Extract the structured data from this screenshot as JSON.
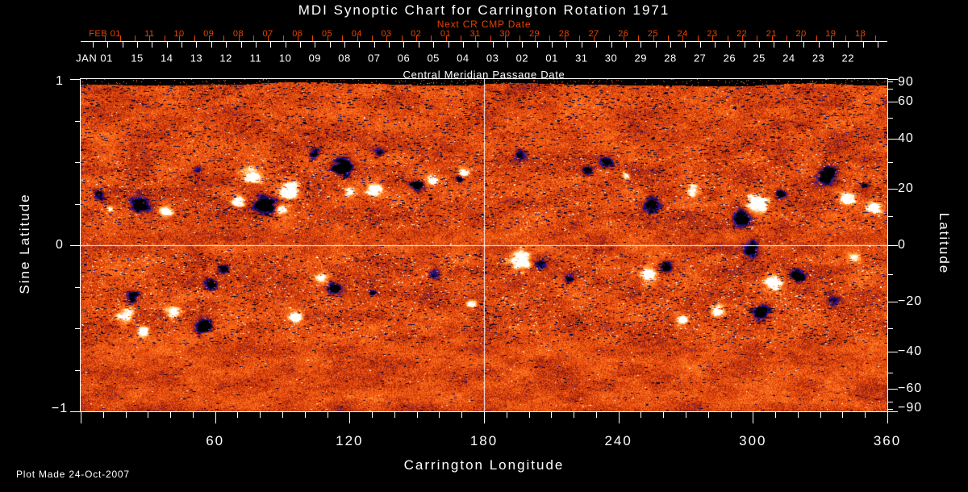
{
  "title": "MDI Synoptic Chart for Carrington Rotation 1971",
  "footer": "Plot Made 24-Oct-2007",
  "colors": {
    "background": "#000000",
    "foreground": "#ffffff",
    "red_axis": "#e84300"
  },
  "top_axis": {
    "red_title": "Next CR CMP Date",
    "red_month": "FEB 01",
    "red_days": [
      "11",
      "10",
      "09",
      "08",
      "07",
      "06",
      "05",
      "04",
      "03",
      "02",
      "01",
      "31",
      "30",
      "29",
      "28",
      "27",
      "26",
      "25",
      "24",
      "23",
      "22",
      "21",
      "20",
      "19",
      "18"
    ],
    "white_month": "JAN 01",
    "white_days": [
      "15",
      "14",
      "13",
      "12",
      "11",
      "10",
      "09",
      "08",
      "07",
      "06",
      "05",
      "04",
      "03",
      "02",
      "01",
      "31",
      "30",
      "29",
      "28",
      "27",
      "26",
      "25",
      "24",
      "23",
      "22"
    ],
    "white_title": "Central Meridian Passage Date"
  },
  "left_axis": {
    "title": "Sine Latitude",
    "labels": [
      {
        "text": "1",
        "s": 1
      },
      {
        "text": "0",
        "s": 0
      },
      {
        "text": "−1",
        "s": -1
      }
    ],
    "minor_step_sine": 0.25
  },
  "right_axis": {
    "title": "Latitude",
    "labels": [
      {
        "text": "90",
        "lat": 90
      },
      {
        "text": "60",
        "lat": 60
      },
      {
        "text": "40",
        "lat": 40
      },
      {
        "text": "20",
        "lat": 20
      },
      {
        "text": "0",
        "lat": 0
      },
      {
        "text": "−20",
        "lat": -20
      },
      {
        "text": "−40",
        "lat": -40
      },
      {
        "text": "−60",
        "lat": -60
      },
      {
        "text": "−90",
        "lat": -90
      }
    ],
    "minor_step_deg": 10
  },
  "bottom_axis": {
    "title": "Carrington Longitude",
    "labels": [
      {
        "text": "60",
        "lon": 60
      },
      {
        "text": "120",
        "lon": 120
      },
      {
        "text": "180",
        "lon": 180
      },
      {
        "text": "240",
        "lon": 240
      },
      {
        "text": "300",
        "lon": 300
      },
      {
        "text": "360",
        "lon": 360
      }
    ],
    "minor_step_deg": 10,
    "range_deg": [
      0,
      360
    ]
  },
  "chart_data": {
    "type": "heatmap",
    "title": "MDI Synoptic Chart for Carrington Rotation 1971",
    "xlabel": "Carrington Longitude",
    "ylabel_left": "Sine Latitude",
    "ylabel_right": "Latitude",
    "x_range_deg": [
      0,
      360
    ],
    "sine_latitude_range": [
      -1,
      1
    ],
    "crosshair": {
      "longitude_deg": 180,
      "sine_latitude": 0
    },
    "description": "Full-disk solar magnetogram synoptic map: mottled orange/red quiet-sun field with dark (negative polarity, black/blue) and bright (positive polarity, white/cream) active regions concentrated in two latitude bands; black no-data strip along the top edge.",
    "palette": [
      [
        -1.0,
        "#000000"
      ],
      [
        -0.72,
        "#05051e"
      ],
      [
        -0.5,
        "#1c16a8"
      ],
      [
        -0.36,
        "#4a1480"
      ],
      [
        -0.26,
        "#7c1a20"
      ],
      [
        -0.16,
        "#a22408"
      ],
      [
        -0.06,
        "#c63409"
      ],
      [
        0.04,
        "#e0460e"
      ],
      [
        0.16,
        "#f35b13"
      ],
      [
        0.28,
        "#ff701c"
      ],
      [
        0.42,
        "#ff8c2e"
      ],
      [
        0.56,
        "#ffae52"
      ],
      [
        0.7,
        "#ffd695"
      ],
      [
        0.84,
        "#fff3da"
      ],
      [
        1.0,
        "#ffffff"
      ]
    ],
    "active_regions_format": [
      "longitude_deg",
      "sine_latitude",
      "radius_px",
      "polarity",
      "strength"
    ],
    "active_regions": [
      [
        8,
        0.3,
        7,
        -1,
        0.9
      ],
      [
        13,
        0.22,
        5,
        1,
        0.8
      ],
      [
        27,
        0.25,
        12,
        -1,
        1.15
      ],
      [
        38,
        0.2,
        9,
        1,
        1.0
      ],
      [
        52,
        0.46,
        6,
        -1,
        0.7
      ],
      [
        70,
        0.27,
        9,
        1,
        0.95
      ],
      [
        76,
        0.42,
        11,
        1,
        1.1
      ],
      [
        82,
        0.24,
        13,
        -1,
        1.25
      ],
      [
        90,
        0.22,
        8,
        1,
        0.9
      ],
      [
        93,
        0.33,
        12,
        1,
        1.2
      ],
      [
        104,
        0.55,
        7,
        -1,
        0.85
      ],
      [
        117,
        0.47,
        13,
        -1,
        1.2
      ],
      [
        120,
        0.32,
        7,
        1,
        0.9
      ],
      [
        131,
        0.34,
        10,
        1,
        1.0
      ],
      [
        133,
        0.56,
        7,
        -1,
        0.8
      ],
      [
        150,
        0.36,
        9,
        -1,
        1.0
      ],
      [
        157,
        0.39,
        7,
        1,
        0.9
      ],
      [
        169,
        0.4,
        5,
        -1,
        0.7
      ],
      [
        171,
        0.44,
        7,
        1,
        1.0
      ],
      [
        196,
        0.55,
        8,
        -1,
        0.55
      ],
      [
        226,
        0.45,
        7,
        -1,
        0.85
      ],
      [
        234,
        0.5,
        8,
        -1,
        0.9
      ],
      [
        243,
        0.42,
        6,
        1,
        0.8
      ],
      [
        255,
        0.24,
        11,
        -1,
        0.75
      ],
      [
        273,
        0.33,
        8,
        1,
        0.9
      ],
      [
        295,
        0.16,
        12,
        -1,
        1.15
      ],
      [
        302,
        0.25,
        13,
        1,
        1.35
      ],
      [
        312,
        0.31,
        7,
        -1,
        0.85
      ],
      [
        333,
        0.42,
        12,
        -1,
        1.1
      ],
      [
        342,
        0.28,
        10,
        1,
        1.0
      ],
      [
        354,
        0.22,
        9,
        1,
        1.1
      ],
      [
        350,
        0.36,
        6,
        -1,
        0.7
      ],
      [
        20,
        -0.42,
        11,
        1,
        1.1
      ],
      [
        28,
        -0.52,
        9,
        1,
        0.9
      ],
      [
        23,
        -0.31,
        8,
        -1,
        0.8
      ],
      [
        41,
        -0.4,
        9,
        1,
        1.0
      ],
      [
        55,
        -0.48,
        11,
        -1,
        1.1
      ],
      [
        58,
        -0.24,
        9,
        -1,
        0.7
      ],
      [
        64,
        -0.14,
        7,
        -1,
        0.7
      ],
      [
        96,
        -0.43,
        9,
        1,
        0.95
      ],
      [
        107,
        -0.2,
        9,
        1,
        0.9
      ],
      [
        113,
        -0.26,
        9,
        -1,
        0.9
      ],
      [
        130,
        -0.28,
        5,
        -1,
        0.6
      ],
      [
        158,
        -0.16,
        8,
        -1,
        0.8
      ],
      [
        174,
        -0.35,
        6,
        1,
        0.7
      ],
      [
        196,
        -0.09,
        13,
        1,
        1.35
      ],
      [
        205,
        -0.11,
        7,
        -1,
        0.9
      ],
      [
        218,
        -0.2,
        6,
        -1,
        0.6
      ],
      [
        253,
        -0.18,
        11,
        1,
        1.1
      ],
      [
        261,
        -0.13,
        8,
        -1,
        0.9
      ],
      [
        268,
        -0.45,
        9,
        1,
        0.7
      ],
      [
        284,
        -0.4,
        9,
        1,
        0.9
      ],
      [
        299,
        -0.02,
        10,
        -1,
        0.95
      ],
      [
        309,
        -0.22,
        11,
        1,
        1.1
      ],
      [
        320,
        -0.18,
        9,
        -1,
        0.9
      ],
      [
        303,
        -0.4,
        11,
        -1,
        0.9
      ],
      [
        336,
        -0.32,
        9,
        -1,
        0.6
      ],
      [
        345,
        -0.07,
        8,
        1,
        0.8
      ]
    ],
    "dark_speckle_bands_sine": [
      [
        0.82,
        1.0,
        6
      ],
      [
        0.1,
        0.8,
        5
      ],
      [
        -0.6,
        -0.05,
        4.5
      ]
    ],
    "bright_speckle_bands_sine": [
      [
        0.1,
        0.55,
        5
      ],
      [
        -0.55,
        -0.05,
        6
      ],
      [
        -0.08,
        0.08,
        2
      ]
    ]
  }
}
